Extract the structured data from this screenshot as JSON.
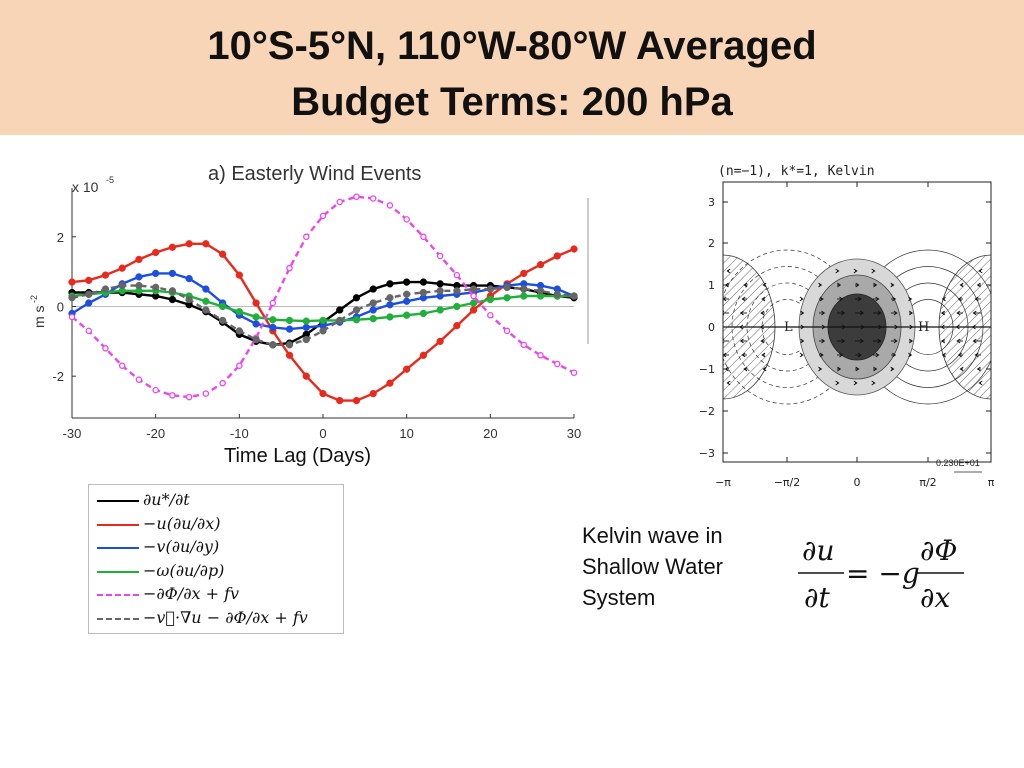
{
  "title": [
    "10°S-5°N, 110°W-80°W Averaged",
    "Budget Terms: 200 hPa"
  ],
  "left_chart": {
    "panel_title": "a) Easterly Wind Events",
    "y_exponent": "x 10",
    "y_exponent_power": "-5",
    "ylabel": "m s",
    "ylabel_power": "-2",
    "xlabel": "Time Lag (Days)",
    "x_ticks": [
      "-30",
      "-20",
      "-10",
      "0",
      "10",
      "20",
      "30"
    ],
    "y_ticks": [
      "2",
      "0",
      "-2"
    ]
  },
  "chart_data": [
    {
      "type": "line",
      "x": [
        -30,
        -28,
        -26,
        -24,
        -22,
        -20,
        -18,
        -16,
        -14,
        -12,
        -10,
        -8,
        -6,
        -4,
        -2,
        0,
        2,
        4,
        6,
        8,
        10,
        12,
        14,
        16,
        18,
        20,
        22,
        24,
        26,
        28,
        30
      ],
      "xlim": [
        -30,
        30
      ],
      "ylim": [
        -3.2,
        3.4
      ],
      "y_scale": "x 10^-5",
      "xlabel": "Time Lag (Days)",
      "ylabel": "m s-2",
      "grid": false,
      "series": [
        {
          "name": "∂u*/∂t",
          "color": "#000000",
          "dash": "solid",
          "markers": true,
          "values": [
            0.4,
            0.4,
            0.4,
            0.4,
            0.35,
            0.3,
            0.2,
            0.05,
            -0.15,
            -0.45,
            -0.8,
            -1.0,
            -1.1,
            -1.05,
            -0.8,
            -0.45,
            -0.1,
            0.25,
            0.5,
            0.65,
            0.7,
            0.7,
            0.65,
            0.6,
            0.6,
            0.6,
            0.55,
            0.5,
            0.4,
            0.3,
            0.25
          ]
        },
        {
          "name": "−u(∂u/∂x)",
          "color": "#e8291c",
          "dash": "solid",
          "markers": true,
          "values": [
            0.7,
            0.75,
            0.9,
            1.1,
            1.35,
            1.55,
            1.7,
            1.8,
            1.8,
            1.5,
            0.9,
            0.1,
            -0.7,
            -1.4,
            -2.0,
            -2.5,
            -2.7,
            -2.7,
            -2.5,
            -2.2,
            -1.8,
            -1.4,
            -1.0,
            -0.55,
            -0.1,
            0.3,
            0.65,
            0.95,
            1.2,
            1.45,
            1.65
          ]
        },
        {
          "name": "−v(∂u/∂y)",
          "color": "#1c4fe0",
          "dash": "solid",
          "markers": true,
          "values": [
            -0.2,
            0.1,
            0.35,
            0.65,
            0.85,
            0.95,
            0.95,
            0.8,
            0.5,
            0.1,
            -0.25,
            -0.5,
            -0.6,
            -0.65,
            -0.6,
            -0.55,
            -0.45,
            -0.3,
            -0.1,
            0.05,
            0.15,
            0.25,
            0.3,
            0.35,
            0.4,
            0.5,
            0.6,
            0.65,
            0.6,
            0.5,
            0.3
          ]
        },
        {
          "name": "−ω(∂u/∂p)",
          "color": "#1fb03a",
          "dash": "solid",
          "markers": true,
          "values": [
            0.3,
            0.35,
            0.4,
            0.45,
            0.45,
            0.45,
            0.4,
            0.3,
            0.15,
            0.0,
            -0.15,
            -0.3,
            -0.38,
            -0.4,
            -0.42,
            -0.4,
            -0.4,
            -0.38,
            -0.35,
            -0.3,
            -0.25,
            -0.2,
            -0.1,
            0.0,
            0.1,
            0.2,
            0.25,
            0.3,
            0.3,
            0.3,
            0.3
          ]
        },
        {
          "name": "−∂Φ/∂x + fv",
          "color": "#ee44ee",
          "dash": "dashed",
          "markers": "open",
          "values": [
            -0.3,
            -0.7,
            -1.2,
            -1.7,
            -2.1,
            -2.4,
            -2.55,
            -2.6,
            -2.5,
            -2.2,
            -1.7,
            -0.9,
            0.1,
            1.1,
            2.0,
            2.6,
            3.0,
            3.15,
            3.1,
            2.9,
            2.5,
            2.0,
            1.45,
            0.9,
            0.3,
            -0.25,
            -0.7,
            -1.1,
            -1.4,
            -1.65,
            -1.9
          ]
        },
        {
          "name": "−v⃗·∇u − ∂Φ/∂x + fv",
          "color": "#666666",
          "dash": "dashed",
          "markers": true,
          "values": [
            0.25,
            0.35,
            0.5,
            0.6,
            0.6,
            0.55,
            0.45,
            0.2,
            -0.1,
            -0.4,
            -0.7,
            -0.95,
            -1.1,
            -1.1,
            -0.95,
            -0.7,
            -0.4,
            -0.1,
            0.1,
            0.25,
            0.35,
            0.4,
            0.45,
            0.45,
            0.5,
            0.5,
            0.55,
            0.5,
            0.45,
            0.35,
            0.3
          ]
        }
      ]
    },
    {
      "type": "diagram",
      "title": "(n=−1), k*=1, Kelvin",
      "y_ticks": [
        "3",
        "2",
        "1",
        "0",
        "−1",
        "−2",
        "−3"
      ],
      "x_ticks": [
        "−π",
        "−π/2",
        "0",
        "π/2",
        "π"
      ],
      "labels": {
        "low": "L",
        "high": "H"
      },
      "scale_note": "0.230E+01"
    }
  ],
  "description": [
    "Kelvin wave in",
    "Shallow Water",
    "System"
  ],
  "equation": {
    "lhs_num": "∂u",
    "lhs_den": "∂t",
    "middle": "= −g",
    "rhs_num": "∂Φ",
    "rhs_den": "∂x"
  }
}
